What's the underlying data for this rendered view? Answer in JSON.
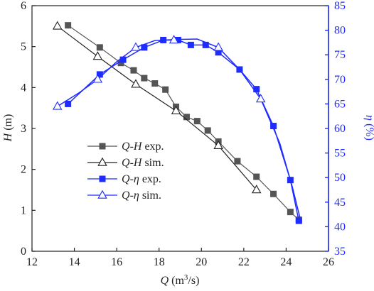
{
  "chart_data": {
    "type": "line",
    "x_axis": {
      "label_var": "Q",
      "label_unit": " (m",
      "label_sup": "3",
      "label_tail": "/s)",
      "range": [
        12,
        26
      ],
      "ticks": [
        12,
        14,
        16,
        18,
        20,
        22,
        24,
        26
      ]
    },
    "y_axis_left": {
      "label_var": "H",
      "label_unit": " (m)",
      "range": [
        0,
        6
      ],
      "ticks": [
        0,
        1,
        2,
        3,
        4,
        5,
        6
      ],
      "color": "#222222"
    },
    "y_axis_right": {
      "label_var": "η",
      "label_unit": " (%)",
      "range": [
        35,
        85
      ],
      "ticks": [
        35,
        40,
        45,
        50,
        55,
        60,
        65,
        70,
        75,
        80,
        85
      ],
      "color": "#1f2cff"
    },
    "legend": {
      "position": "lower-left",
      "entries": [
        {
          "var": "Q",
          "dash": "-",
          "sym": "H",
          "suffix": " exp."
        },
        {
          "var": "Q",
          "dash": "-",
          "sym": "H",
          "suffix": " sim."
        },
        {
          "var": "Q",
          "dash": "-",
          "sym": "η",
          "suffix": " exp."
        },
        {
          "var": "Q",
          "dash": "-",
          "sym": "η",
          "suffix": " sim."
        }
      ]
    },
    "series": [
      {
        "axis": "left",
        "marker": "square-filled",
        "color": "#555555",
        "x": [
          13.7,
          15.2,
          16.2,
          16.8,
          17.3,
          17.8,
          18.3,
          18.8,
          19.3,
          19.8,
          20.3,
          20.8,
          21.7,
          22.6,
          23.4,
          24.2,
          24.6
        ],
        "y": [
          5.52,
          4.98,
          4.6,
          4.42,
          4.23,
          4.1,
          3.95,
          3.53,
          3.28,
          3.18,
          2.95,
          2.68,
          2.2,
          1.82,
          1.4,
          0.96,
          0.77
        ]
      },
      {
        "axis": "left",
        "marker": "triangle-open",
        "color": "#222222",
        "x": [
          13.2,
          15.1,
          16.9,
          18.8,
          20.8,
          22.6
        ],
        "y": [
          5.5,
          4.76,
          4.08,
          3.43,
          2.58,
          1.5
        ]
      },
      {
        "axis": "right",
        "marker": "square-filled",
        "color": "#1f2cff",
        "x": [
          13.7,
          15.2,
          16.3,
          17.3,
          18.2,
          18.9,
          19.5,
          20.2,
          20.8,
          21.8,
          22.6,
          23.4,
          24.2,
          24.6
        ],
        "y": [
          65.0,
          71.0,
          74.0,
          76.5,
          78.0,
          78.0,
          77.0,
          77.0,
          75.5,
          72.0,
          68.0,
          60.5,
          49.5,
          41.2
        ]
      },
      {
        "axis": "right",
        "marker": "triangle-open",
        "color": "#1f2cff",
        "x": [
          13.2,
          15.1,
          16.9,
          18.7,
          20.8,
          22.8
        ],
        "y": [
          64.5,
          70.0,
          76.5,
          78.0,
          76.5,
          66.0
        ]
      }
    ],
    "eta_sim_curve": {
      "x": [
        13.2,
        14.2,
        15.1,
        16.0,
        16.9,
        17.8,
        18.7,
        19.8,
        20.8,
        21.8,
        22.8,
        23.7,
        24.3,
        24.7
      ],
      "y": [
        64.5,
        67.2,
        70.0,
        73.6,
        76.5,
        77.9,
        78.1,
        78.2,
        76.5,
        72.0,
        66.0,
        57.0,
        48.0,
        41.0
      ]
    }
  }
}
